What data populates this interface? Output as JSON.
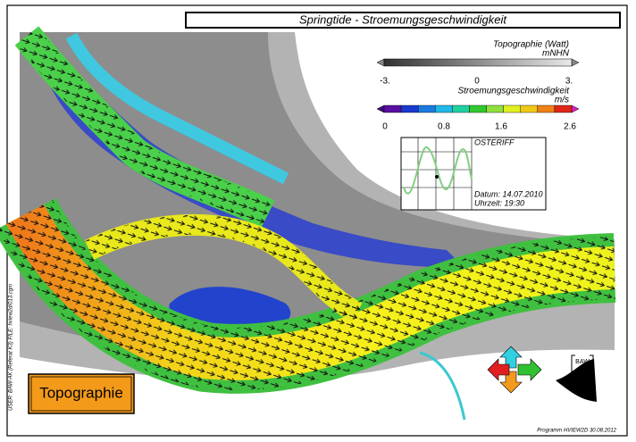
{
  "title": "Springtide - Stroemungsgeschwindigkeit",
  "legend_topo": {
    "title": "Topographie (Watt)",
    "unit": "mNHN",
    "ticks": [
      "-3.",
      "0",
      "3."
    ]
  },
  "legend_speed": {
    "title": "Stroemungsgeschwindigkeit",
    "unit": "m/s",
    "ticks": [
      "0",
      "0.8",
      "1.6",
      "2.6"
    ]
  },
  "inset": {
    "station": "OSTERIFF",
    "date": "Datum: 14.07.2010",
    "time": "Uhrzeit: 19:30"
  },
  "button": "Topographie",
  "logo": "BAW",
  "side_note": "USER: BAW-AK (Referat K3)    FILE: hview2d/013.cgm",
  "footer": "Programm HVIEW2D    30.08.2012"
}
